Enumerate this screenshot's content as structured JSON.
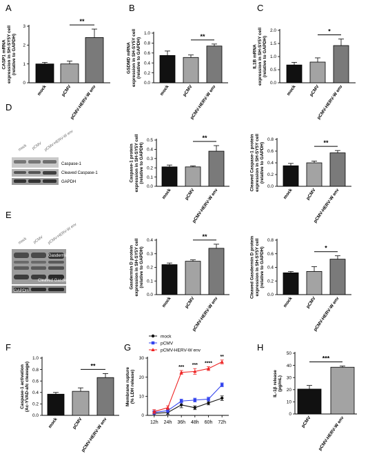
{
  "figure": {
    "panel_letters": [
      "A",
      "B",
      "C",
      "D",
      "E",
      "F",
      "G",
      "H"
    ],
    "significance": {
      "A": "**",
      "B": "**",
      "C": "*",
      "D1": "**",
      "D2": "**",
      "E1": "**",
      "E2": "*",
      "F": "**",
      "H": "***"
    }
  },
  "blots": {
    "D": {
      "lanes": [
        "mock",
        "pCMV",
        "pCMV-HERV-W env"
      ],
      "bands": [
        "Caspase-1",
        "Cleaved Caspase-1",
        "GAPDH"
      ]
    },
    "E": {
      "lanes": [
        "mock",
        "pCMV",
        "pCMV-HERV-W env"
      ],
      "bands": [
        "Gasdermin D",
        "Cleaved Gasdermin D",
        "GAPDH"
      ]
    }
  },
  "chart_data": [
    {
      "id": "A",
      "type": "bar",
      "categories": [
        "mock",
        "pCMV",
        "pCMV-HERV-W env"
      ],
      "values": [
        1.0,
        1.0,
        2.4
      ],
      "errors": [
        0.08,
        0.15,
        0.45
      ],
      "ylabel": [
        "CASP1 mRNA",
        "expression in SH-SY5Y cell",
        "(relative to GAPDH)"
      ],
      "ylim": [
        0,
        3
      ],
      "yticks": [
        0,
        1,
        2,
        3
      ],
      "colors": [
        "#111111",
        "#a3a3a3",
        "#7a7a7a"
      ],
      "sig": {
        "label": "**",
        "from": 1,
        "to": 2
      }
    },
    {
      "id": "B",
      "type": "bar",
      "categories": [
        "mock",
        "pCMV",
        "pCMV-HERV-W env"
      ],
      "values": [
        0.55,
        0.51,
        0.74
      ],
      "errors": [
        0.09,
        0.05,
        0.04
      ],
      "ylabel": [
        "GSDMD mRNA",
        "expression in SH-SY5Y cell",
        "(relative to GAPDH)"
      ],
      "ylim": [
        0,
        1.0
      ],
      "yticks": [
        0,
        0.2,
        0.4,
        0.6,
        0.8,
        1.0
      ],
      "colors": [
        "#111111",
        "#a3a3a3",
        "#7a7a7a"
      ],
      "sig": {
        "label": "**",
        "from": 1,
        "to": 2
      }
    },
    {
      "id": "C",
      "type": "bar",
      "categories": [
        "mock",
        "pCMV",
        "pCMV-HERV-W env"
      ],
      "values": [
        0.68,
        0.79,
        1.42
      ],
      "errors": [
        0.1,
        0.16,
        0.25
      ],
      "ylabel": [
        "IL1B mRNA",
        "expression in SH-SY5Y cell",
        "(relative to GAPDH)"
      ],
      "ylim": [
        0,
        2.0
      ],
      "yticks": [
        0,
        0.5,
        1.0,
        1.5,
        2.0
      ],
      "colors": [
        "#111111",
        "#a3a3a3",
        "#7a7a7a"
      ],
      "sig": {
        "label": "*",
        "from": 1,
        "to": 2
      }
    },
    {
      "id": "D1",
      "type": "bar",
      "categories": [
        "mock",
        "pCMV",
        "pCMV-HERV-W env"
      ],
      "values": [
        0.21,
        0.21,
        0.38
      ],
      "errors": [
        0.02,
        0.01,
        0.06
      ],
      "ylabel": [
        "Caspase-1 protein",
        "expression in SH-SY5Y cell",
        "(relative to GAPDH)"
      ],
      "ylim": [
        0,
        0.5
      ],
      "yticks": [
        0.0,
        0.1,
        0.2,
        0.3,
        0.4,
        0.5
      ],
      "colors": [
        "#111111",
        "#a3a3a3",
        "#7a7a7a"
      ],
      "sig": {
        "label": "**",
        "from": 1,
        "to": 2
      }
    },
    {
      "id": "D2",
      "type": "bar",
      "categories": [
        "mock",
        "pCMV",
        "pCMV-HERV-W env"
      ],
      "values": [
        0.35,
        0.4,
        0.57
      ],
      "errors": [
        0.04,
        0.03,
        0.04
      ],
      "ylabel": [
        "Cleaved Caspase-1 protein",
        "expression in SH-SY5Y cell",
        "(relative to GAPDH)"
      ],
      "ylim": [
        0,
        0.8
      ],
      "yticks": [
        0.0,
        0.2,
        0.4,
        0.6,
        0.8
      ],
      "colors": [
        "#111111",
        "#a3a3a3",
        "#7a7a7a"
      ],
      "sig": {
        "label": "**",
        "from": 1,
        "to": 2
      }
    },
    {
      "id": "E1",
      "type": "bar",
      "categories": [
        "mock",
        "pCMV",
        "pCMV-HERV-W env"
      ],
      "values": [
        0.22,
        0.245,
        0.34
      ],
      "errors": [
        0.012,
        0.01,
        0.03
      ],
      "ylabel": [
        "Gasdermin D protein",
        "expression in SH-SY5Y cell",
        "(relative to GAPDH)"
      ],
      "ylim": [
        0,
        0.4
      ],
      "yticks": [
        0.0,
        0.1,
        0.2,
        0.3,
        0.4
      ],
      "colors": [
        "#111111",
        "#a3a3a3",
        "#7a7a7a"
      ],
      "sig": {
        "label": "**",
        "from": 1,
        "to": 2
      }
    },
    {
      "id": "E2",
      "type": "bar",
      "categories": [
        "mock",
        "pCMV",
        "pCMV-HERV-W env"
      ],
      "values": [
        0.32,
        0.34,
        0.52
      ],
      "errors": [
        0.02,
        0.07,
        0.05
      ],
      "ylabel": [
        "Cleaved Gasdermin D protein",
        "expression in SH-SY5Y cell",
        "(relative to GAPDH)"
      ],
      "ylim": [
        0,
        0.8
      ],
      "yticks": [
        0.0,
        0.2,
        0.4,
        0.6,
        0.8
      ],
      "colors": [
        "#111111",
        "#a3a3a3",
        "#7a7a7a"
      ],
      "sig": {
        "label": "*",
        "from": 1,
        "to": 2
      }
    },
    {
      "id": "F",
      "type": "bar",
      "categories": [
        "mock",
        "pCMV",
        "pCMV-HERV-W env"
      ],
      "values": [
        0.37,
        0.42,
        0.66
      ],
      "errors": [
        0.03,
        0.06,
        0.07
      ],
      "ylabel": [
        "Caspase-1 activation",
        "(Ac-YVAD-afc cleavage)"
      ],
      "ylim": [
        0,
        1.0
      ],
      "yticks": [
        0.0,
        0.2,
        0.4,
        0.6,
        0.8,
        1.0
      ],
      "colors": [
        "#111111",
        "#a3a3a3",
        "#7a7a7a"
      ],
      "sig": {
        "label": "**",
        "from": 1,
        "to": 2
      }
    },
    {
      "id": "G",
      "type": "line",
      "x": [
        "12h",
        "24h",
        "36h",
        "48h",
        "60h",
        "72h"
      ],
      "series": [
        {
          "name": "mock",
          "color": "#111111",
          "marker": "circle",
          "values": [
            1,
            1.5,
            5.5,
            4,
            6.5,
            9
          ],
          "errors": [
            1,
            1,
            1.5,
            1,
            1,
            1.2
          ]
        },
        {
          "name": "pCMV",
          "color": "#3344ee",
          "marker": "square",
          "values": [
            1.5,
            2.5,
            7.5,
            8,
            8.5,
            16
          ],
          "errors": [
            1,
            1,
            1,
            1,
            1,
            1
          ]
        },
        {
          "name": "pCMV-HERV-W env",
          "color": "#ee2222",
          "marker": "triangle",
          "values": [
            2,
            4,
            22.5,
            23,
            24.5,
            28
          ],
          "errors": [
            1,
            1,
            1,
            1.5,
            1,
            1
          ]
        }
      ],
      "ylabel": [
        "Membrane rupture",
        "(% LDH release)"
      ],
      "ylim": [
        0,
        30
      ],
      "yticks": [
        0,
        10,
        20,
        30
      ],
      "annotations": [
        "",
        "",
        "***",
        "***",
        "****",
        "**"
      ]
    },
    {
      "id": "H",
      "type": "bar",
      "categories": [
        "pCMV",
        "pCMV-HERV-W env"
      ],
      "values": [
        20.5,
        38.5
      ],
      "errors": [
        3,
        1
      ],
      "ylabel": [
        "IL-1β release",
        "(pg/mL)"
      ],
      "ylim": [
        0,
        50
      ],
      "yticks": [
        0,
        10,
        20,
        30,
        40,
        50
      ],
      "colors": [
        "#111111",
        "#a3a3a3"
      ],
      "sig": {
        "label": "***",
        "from": 0,
        "to": 1
      }
    }
  ]
}
